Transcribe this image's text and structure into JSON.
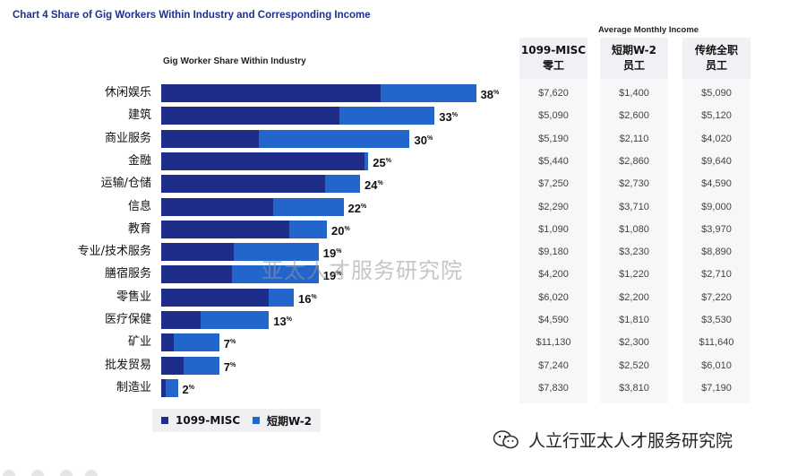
{
  "title": "Chart 4   Share of Gig Workers Within Industry and Corresponding Income",
  "bar_section_label": "Gig Worker Share Within Industry",
  "income_section_label": "Average Monthly Income",
  "income_columns": [
    "1099-MISC\n零工",
    "短期W-2\n员工",
    "传统全职\n员工"
  ],
  "legend": [
    {
      "label": "1099-MISC",
      "color": "#1e2c8a"
    },
    {
      "label": "短期W-2",
      "color": "#2266cc"
    }
  ],
  "watermark": "亚太人才服务研究院",
  "footer_text": "人立行亚太人才服务研究院",
  "chart_data": {
    "type": "bar",
    "orientation": "horizontal",
    "stacked": true,
    "categories": [
      "休闲娱乐",
      "建筑",
      "商业服务",
      "金融",
      "运输/仓储",
      "信息",
      "教育",
      "专业/技术服务",
      "膳宿服务",
      "零售业",
      "医疗保健",
      "矿业",
      "批发贸易",
      "制造业"
    ],
    "series": [
      {
        "name": "1099-MISC",
        "values": [
          26.5,
          21.5,
          11.8,
          24.5,
          19.8,
          13.5,
          15.5,
          8.8,
          8.5,
          13.0,
          4.8,
          1.5,
          2.7,
          0.5
        ]
      },
      {
        "name": "短期W-2",
        "values": [
          11.5,
          11.5,
          18.2,
          0.5,
          4.2,
          8.5,
          4.5,
          10.2,
          10.5,
          3.0,
          8.2,
          5.5,
          4.3,
          1.5
        ]
      }
    ],
    "totals": [
      38,
      33,
      30,
      25,
      24,
      22,
      20,
      19,
      19,
      16,
      13,
      7,
      7,
      2
    ],
    "total_labels": [
      "38",
      "33",
      "30",
      "25",
      "24",
      "22",
      "20",
      "19",
      "19",
      "16",
      "13",
      "7",
      "7",
      "2"
    ],
    "unit": "%",
    "income": {
      "1099_misc": [
        "$7,620",
        "$5,090",
        "$5,190",
        "$5,440",
        "$7,250",
        "$2,290",
        "$1,090",
        "$9,180",
        "$4,200",
        "$6,020",
        "$4,590",
        "$11,130",
        "$7,240",
        "$7,830"
      ],
      "short_term_w2": [
        "$1,400",
        "$2,600",
        "$2,110",
        "$2,860",
        "$2,730",
        "$3,710",
        "$1,080",
        "$3,230",
        "$1,220",
        "$2,200",
        "$1,810",
        "$2,300",
        "$2,520",
        "$3,810"
      ],
      "traditional_full_time": [
        "$5,090",
        "$5,120",
        "$4,020",
        "$9,640",
        "$4,590",
        "$9,000",
        "$3,970",
        "$8,890",
        "$2,710",
        "$7,220",
        "$3,530",
        "$11,640",
        "$6,010",
        "$7,190"
      ]
    },
    "xlim": [
      0,
      40
    ],
    "grid": false,
    "legend_position": "bottom-left"
  }
}
